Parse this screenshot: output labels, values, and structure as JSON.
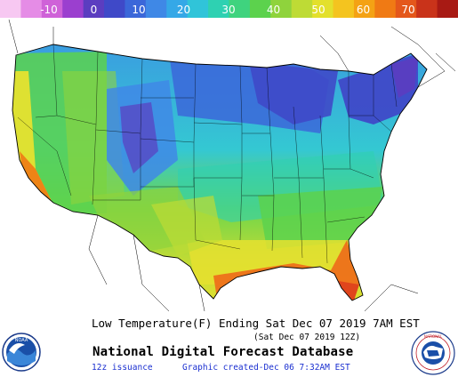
{
  "colorbar": {
    "tick_labels": [
      "-10",
      "0",
      "10",
      "20",
      "30",
      "40",
      "50",
      "60",
      "70"
    ],
    "colors": [
      "#f7c8f2",
      "#e58ce6",
      "#cf62d8",
      "#9b3fcf",
      "#5b3dc0",
      "#3f49c8",
      "#3b67d9",
      "#3f88e6",
      "#35a8e7",
      "#30c4d9",
      "#2ed1b2",
      "#3fd37e",
      "#5cd24d",
      "#8fd33c",
      "#bedb35",
      "#e3e02c",
      "#f4c41f",
      "#f4a214",
      "#f07a14",
      "#e4571b",
      "#c9331a",
      "#a81a14"
    ]
  },
  "legend_colors": {
    "cold_northeast": "#3b3fbf",
    "rockies": "#5a63d2",
    "plains": "#3c92e4",
    "mid_south": "#34c8d2",
    "south": "#6fd64b",
    "gulf": "#e6e12f",
    "coast_hot": "#ee6a1a",
    "florida_tip": "#e0451c"
  },
  "footer": {
    "title_line": "Low Temperature(F) Ending Sat Dec 07 2019  7AM EST",
    "valid_time": "(Sat Dec 07 2019 12Z)",
    "product_name": "National Digital Forecast Database",
    "issuance": "12z issuance",
    "created": "Graphic created-Dec 06  7:32AM EST"
  },
  "logos": {
    "noaa_text": "NOAA",
    "nws_text": "NATIONAL WEATHER SERVICE"
  }
}
